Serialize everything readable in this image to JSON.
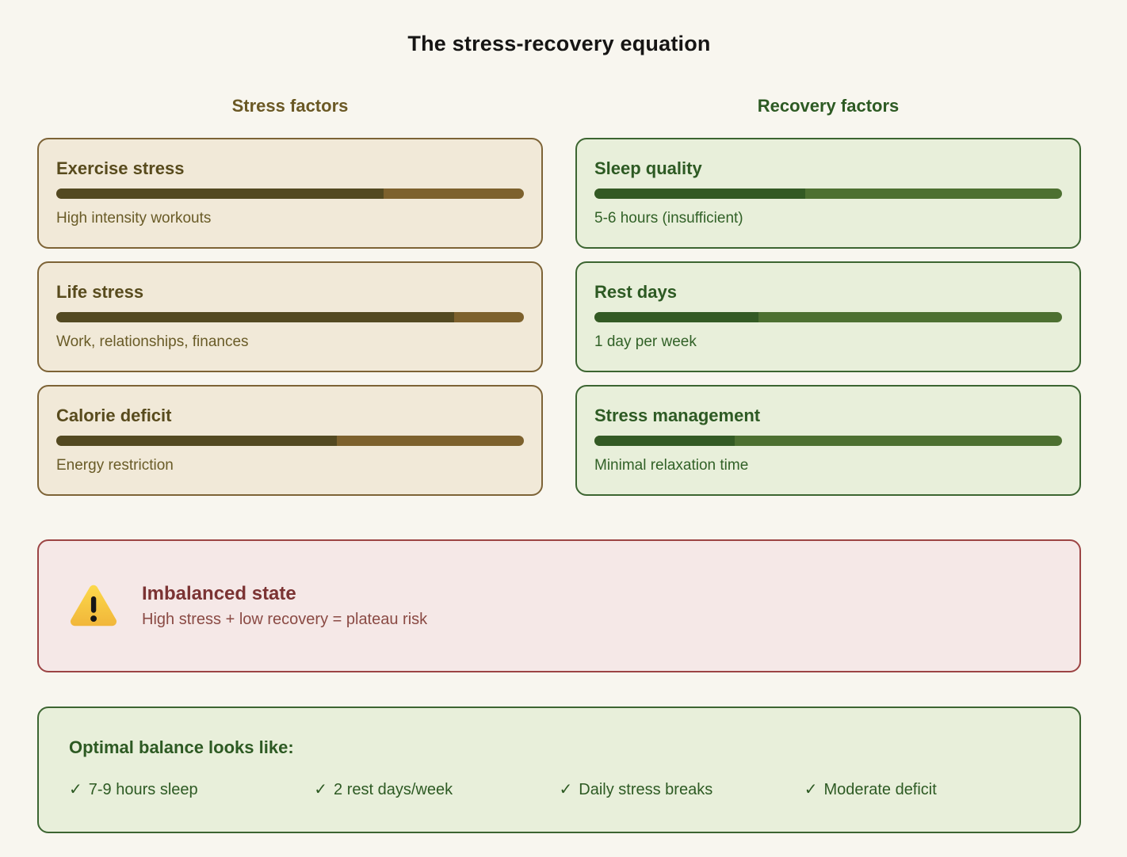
{
  "title": "The stress-recovery equation",
  "stress_column": {
    "header": "Stress factors",
    "cards": [
      {
        "title": "Exercise stress",
        "bar_percent": 70,
        "subtitle": "High intensity workouts"
      },
      {
        "title": "Life stress",
        "bar_percent": 85,
        "subtitle": "Work, relationships, finances"
      },
      {
        "title": "Calorie deficit",
        "bar_percent": 60,
        "subtitle": "Energy restriction"
      }
    ]
  },
  "recovery_column": {
    "header": "Recovery factors",
    "cards": [
      {
        "title": "Sleep quality",
        "bar_percent": 45,
        "subtitle": "5-6 hours (insufficient)"
      },
      {
        "title": "Rest days",
        "bar_percent": 35,
        "subtitle": "1 day per week"
      },
      {
        "title": "Stress management",
        "bar_percent": 30,
        "subtitle": "Minimal relaxation time"
      }
    ]
  },
  "warning_banner": {
    "icon": "warning-triangle",
    "title": "Imbalanced state",
    "subtitle": "High stress + low recovery = plateau risk"
  },
  "optimal_panel": {
    "heading": "Optimal balance looks like:",
    "check_glyph": "✓",
    "items": [
      "7-9 hours sleep",
      "2 rest days/week",
      "Daily stress breaks",
      "Moderate deficit"
    ]
  },
  "colors": {
    "page-bg": "#f8f6ef",
    "title-color": "#161514",
    "stress-card-bg": "#f1e9d8",
    "stress-border": "#7d6336",
    "stress-header": "#6a5824",
    "stress-title": "#584b1d",
    "stress-subtext": "#695b27",
    "stress-bar-fill": "#534921",
    "stress-bar-track": "#7d612d",
    "recovery-card-bg": "#e8efda",
    "recovery-border": "#3c6531",
    "recovery-header": "#2d5a23",
    "recovery-title": "#2d5a23",
    "recovery-subtext": "#316127",
    "recovery-bar-fill": "#335a24",
    "recovery-bar-track": "#4d7031",
    "warning-bg": "#f5e8e7",
    "warning-border": "#9c4444",
    "warning-title": "#7b3333",
    "warning-subtext": "#8a4a44",
    "warning-icon-top": "#fcd94b",
    "warning-icon-bottom": "#f1b63a"
  }
}
